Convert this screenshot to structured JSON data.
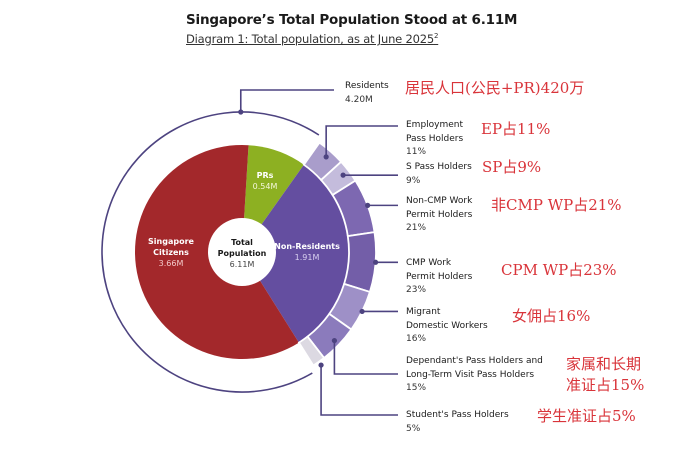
{
  "header": {
    "title": "Singapore’s Total Population Stood at 6.11M",
    "subtitle": "Diagram 1: Total population, as at June 2025",
    "subtitle_footnote": "2"
  },
  "center": {
    "label_line1": "Total",
    "label_line2": "Population",
    "value": "6.11M"
  },
  "inner_slices": [
    {
      "name": "Singapore Citizens",
      "line1": "Singapore",
      "line2": "Citizens",
      "value": "3.66M",
      "color": "#a3282b"
    },
    {
      "name": "PRs",
      "line1": "PRs",
      "value": "0.54M",
      "color": "#8db022"
    },
    {
      "name": "Non-Residents",
      "line1": "Non-Residents",
      "value": "1.91M",
      "color": "#644ea0"
    }
  ],
  "residents": {
    "label": "Residents",
    "value": "4.20M",
    "annotation": "居民人口(公民+PR)420万"
  },
  "non_resident_breakdown": [
    {
      "line1": "Employment",
      "line2": "Pass Holders",
      "pct": "11%",
      "annotation": "EP占11%",
      "color": "#a99dcb"
    },
    {
      "line1": "S Pass Holders",
      "pct": "9%",
      "annotation": "SP占9%",
      "color": "#c4bcdc"
    },
    {
      "line1": "Non-CMP Work",
      "line2": "Permit Holders",
      "pct": "21%",
      "annotation": "非CMP WP占21%",
      "color": "#7d68b1"
    },
    {
      "line1": "CMP Work",
      "line2": "Permit Holders",
      "pct": "23%",
      "annotation": "CPM WP占23%",
      "color": "#735ea8"
    },
    {
      "line1": "Migrant",
      "line2": "Domestic Workers",
      "pct": "16%",
      "annotation": "女佣占16%",
      "color": "#9e90c7"
    },
    {
      "line1": "Dependant's Pass Holders and",
      "line2": "Long-Term Visit Pass Holders",
      "pct": "15%",
      "annotation_line1": "家属和长期",
      "annotation_line2": "准证占15%",
      "color": "#8b7bbc"
    },
    {
      "line1": "Student's Pass Holders",
      "pct": "5%",
      "annotation": "学生准证占5%",
      "color": "#dcd9e2"
    }
  ],
  "chart_data": {
    "type": "pie",
    "title": "Singapore’s Total Population Stood at 6.11M",
    "subtitle": "Diagram 1: Total population, as at June 2025",
    "total": {
      "label": "Total Population",
      "value_millions": 6.11
    },
    "inner_ring": {
      "categories": [
        "Singapore Citizens",
        "PRs",
        "Non-Residents"
      ],
      "values": [
        3.66,
        0.54,
        1.91
      ],
      "unit": "M"
    },
    "residents_group": {
      "label": "Residents",
      "value": 4.2,
      "unit": "M",
      "includes": [
        "Singapore Citizens",
        "PRs"
      ]
    },
    "outer_ring_non_residents": {
      "categories": [
        "Employment Pass Holders",
        "S Pass Holders",
        "Non-CMP Work Permit Holders",
        "CMP Work Permit Holders",
        "Migrant Domestic Workers",
        "Dependant's Pass Holders and Long-Term Visit Pass Holders",
        "Student's Pass Holders"
      ],
      "values": [
        11,
        9,
        21,
        23,
        16,
        15,
        5
      ],
      "unit": "%"
    },
    "annotations": [
      "居民人口(公民+PR)420万",
      "EP占11%",
      "SP占9%",
      "非CMP WP占21%",
      "CPM WP占23%",
      "女佣占16%",
      "家属和长期准证占15%",
      "学生准证占5%"
    ]
  }
}
